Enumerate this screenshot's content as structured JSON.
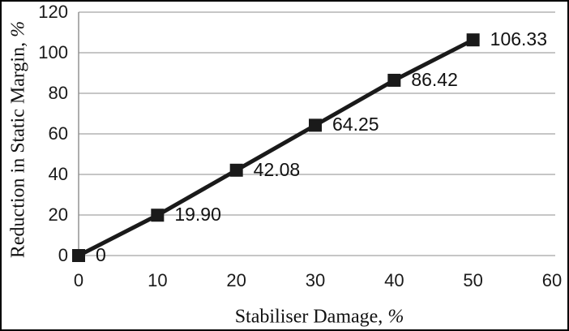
{
  "chart": {
    "y_title_main": "Reduction in Static Margin, ",
    "y_title_suffix": "%",
    "x_title_main": "Stabiliser Damage, ",
    "x_title_suffix": "%"
  },
  "chart_data": {
    "type": "line",
    "title": "",
    "xlabel": "Stabiliser Damage, %",
    "ylabel": "Reduction in Static Margin, %",
    "x": [
      0,
      10,
      20,
      30,
      40,
      50
    ],
    "y": [
      0,
      19.9,
      42.08,
      64.25,
      86.42,
      106.33
    ],
    "data_labels": [
      "0",
      "19.90",
      "42.08",
      "64.25",
      "86.42",
      "106.33"
    ],
    "x_ticks": [
      0,
      10,
      20,
      30,
      40,
      50,
      60
    ],
    "y_ticks": [
      0,
      20,
      40,
      60,
      80,
      100,
      120
    ],
    "xlim": [
      0,
      60
    ],
    "ylim": [
      0,
      120
    ],
    "grid": "horizontal",
    "legend": "none",
    "marker": "square",
    "line_color": "#1a1a1a",
    "marker_color": "#1a1a1a",
    "gridline_color": "#a3a3a3",
    "axis_line_color": "#8c8c8c",
    "background_color": "#ffffff",
    "border_color": "#000000"
  }
}
